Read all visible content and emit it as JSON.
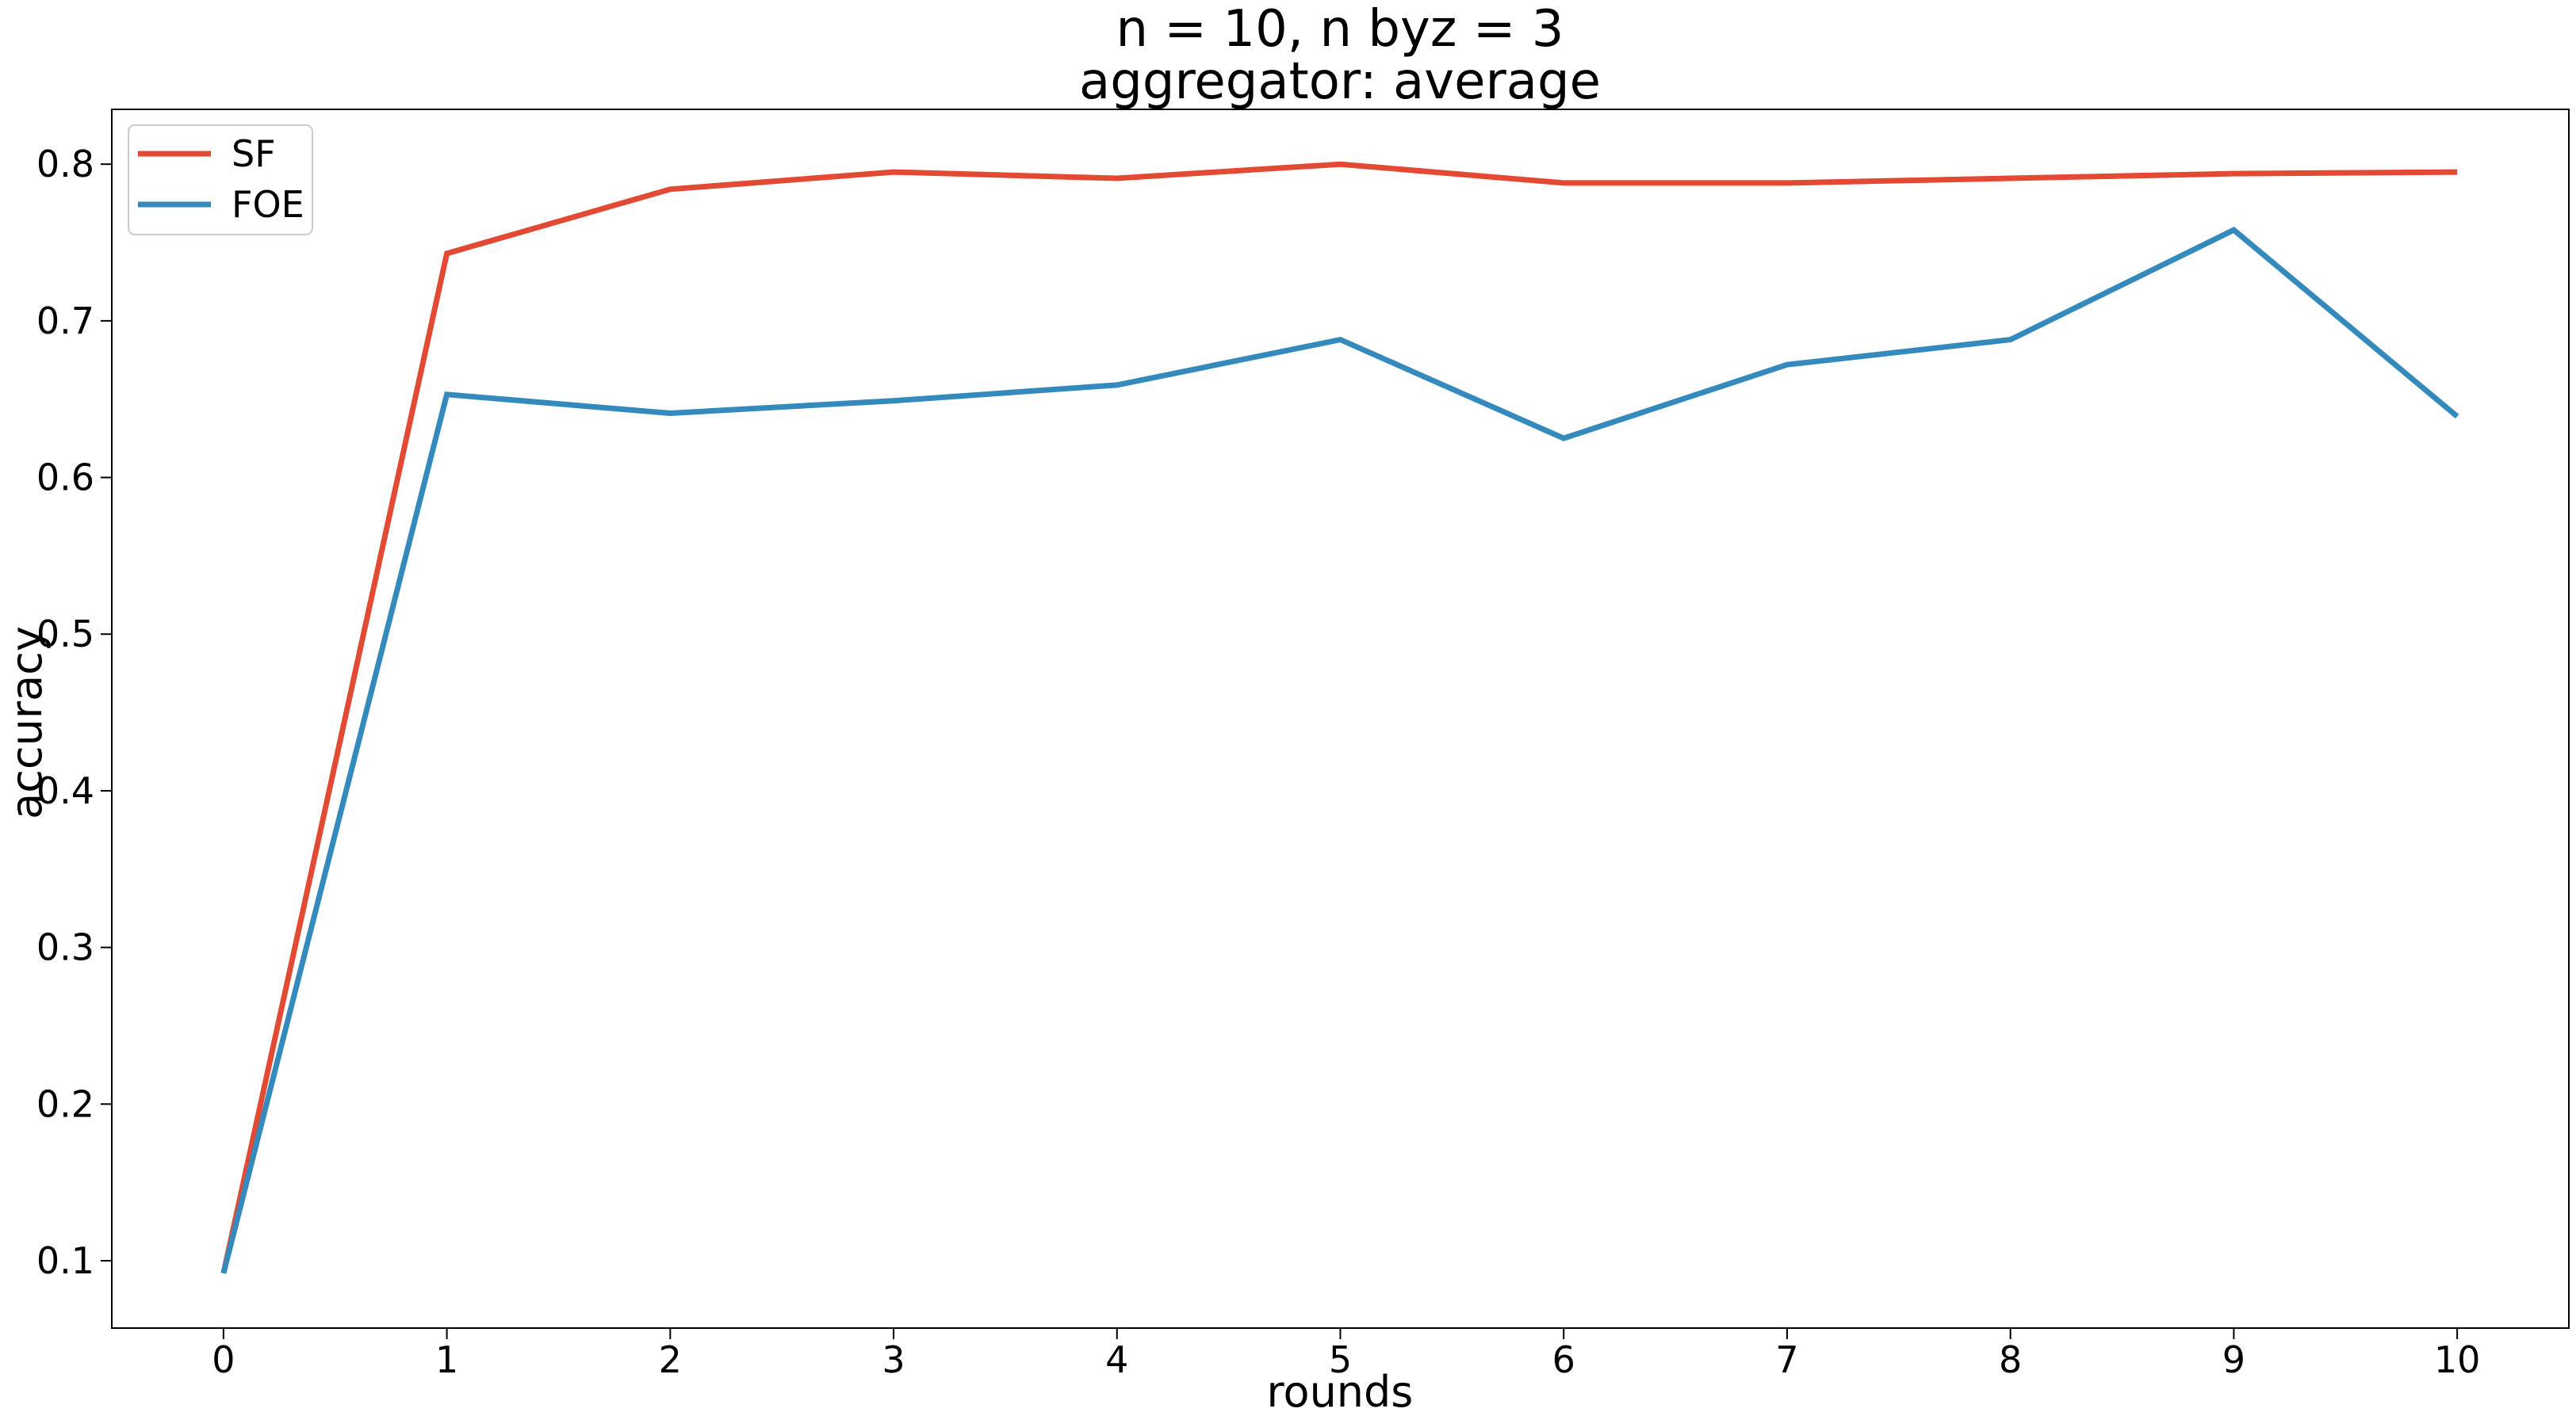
{
  "chart_data": {
    "type": "line",
    "title": "n = 10, n byz = 3",
    "subtitle": "aggregator: average",
    "xlabel": "rounds",
    "ylabel": "accuracy",
    "x": [
      0,
      1,
      2,
      3,
      4,
      5,
      6,
      7,
      8,
      9,
      10
    ],
    "xlim": [
      -0.5,
      10.5
    ],
    "ylim": [
      0.057,
      0.835
    ],
    "xticks": [
      "0",
      "1",
      "2",
      "3",
      "4",
      "5",
      "6",
      "7",
      "8",
      "9",
      "10"
    ],
    "yticks": [
      "0.1",
      "0.2",
      "0.3",
      "0.4",
      "0.5",
      "0.6",
      "0.7",
      "0.8"
    ],
    "grid": false,
    "legend_position": "top-left",
    "series": [
      {
        "name": "SF",
        "color": "#E24A33",
        "values": [
          0.092,
          0.743,
          0.784,
          0.795,
          0.791,
          0.8,
          0.788,
          0.788,
          0.791,
          0.794,
          0.795
        ]
      },
      {
        "name": "FOE",
        "color": "#348ABD",
        "values": [
          0.092,
          0.653,
          0.641,
          0.649,
          0.659,
          0.688,
          0.625,
          0.672,
          0.688,
          0.758,
          0.639
        ]
      }
    ]
  }
}
